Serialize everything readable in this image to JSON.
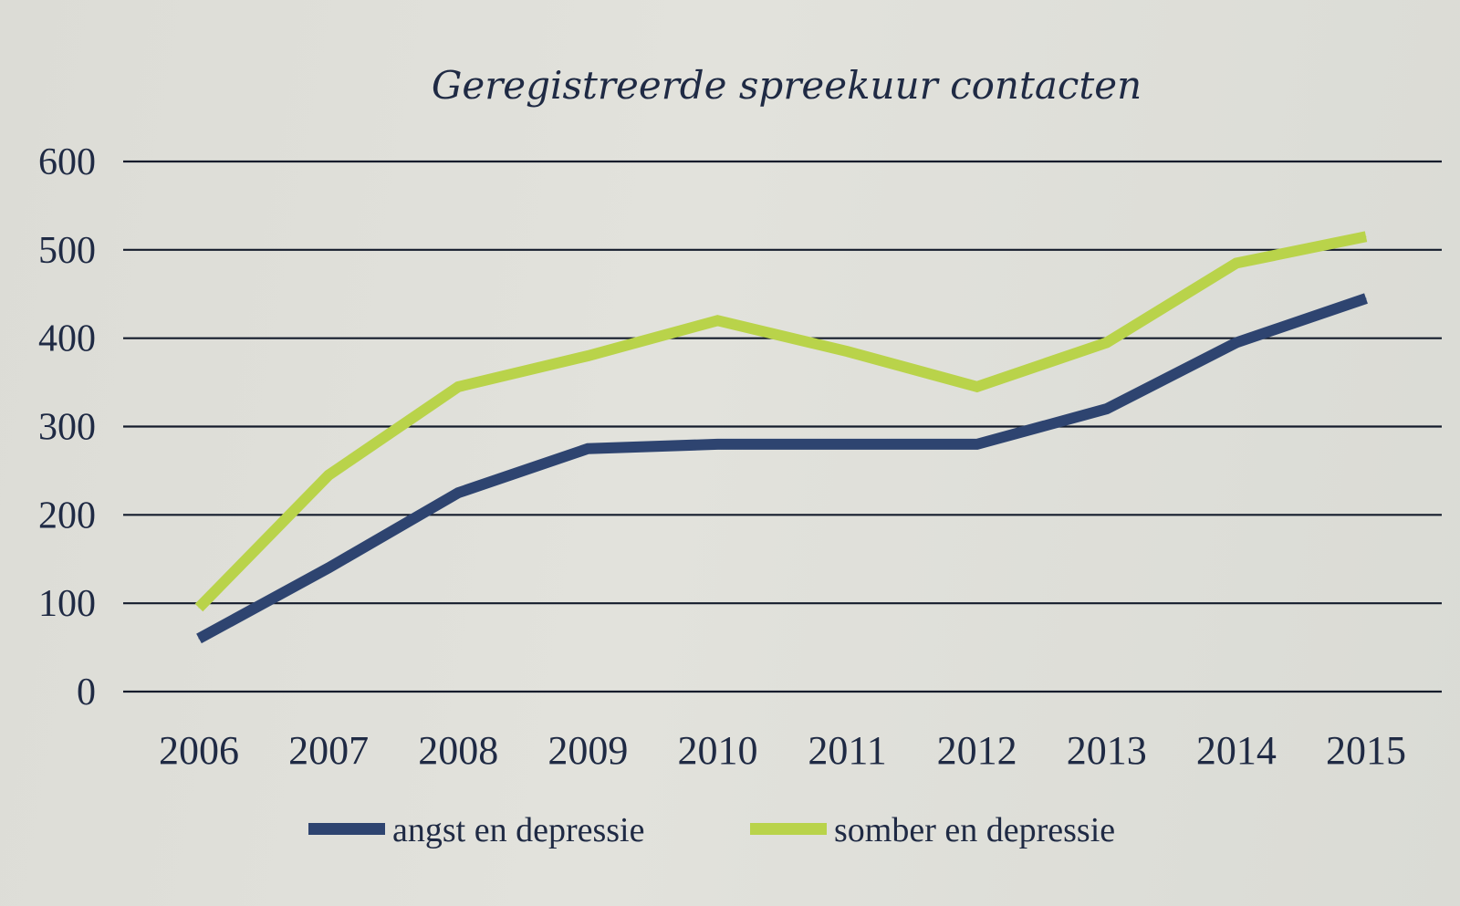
{
  "chart_data": {
    "type": "line",
    "title": "Geregistreerde spreekuur contacten",
    "xlabel": "",
    "ylabel": "",
    "categories": [
      "2006",
      "2007",
      "2008",
      "2009",
      "2010",
      "2011",
      "2012",
      "2013",
      "2014",
      "2015"
    ],
    "yticks": [
      "0",
      "100",
      "200",
      "300",
      "400",
      "500",
      "600"
    ],
    "ylim": [
      0,
      600
    ],
    "grid": true,
    "legend_position": "bottom",
    "series": [
      {
        "name": "angst en depressie",
        "color": "#2e4470",
        "values": [
          60,
          140,
          225,
          275,
          280,
          280,
          280,
          320,
          395,
          445
        ]
      },
      {
        "name": "somber en depressie",
        "color": "#b9d34a",
        "values": [
          95,
          245,
          345,
          380,
          420,
          385,
          345,
          395,
          485,
          515
        ]
      }
    ]
  }
}
